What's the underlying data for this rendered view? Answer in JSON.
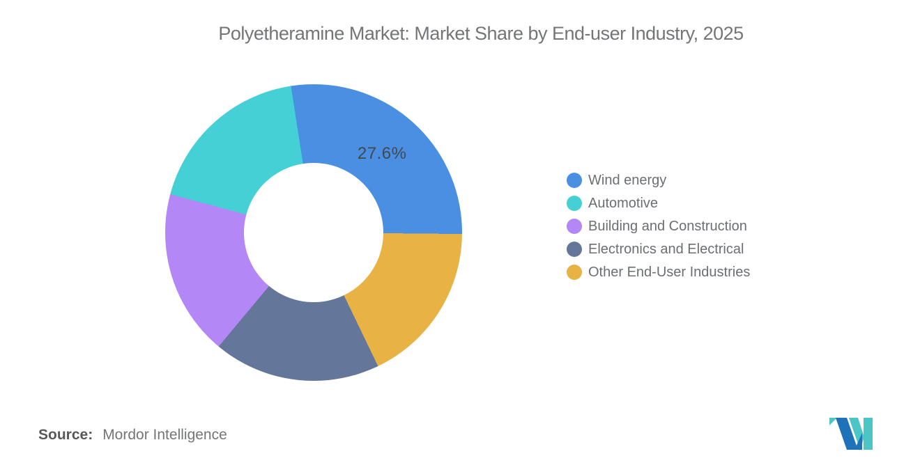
{
  "chart_data": {
    "type": "pie",
    "subtype": "donut",
    "title": "Polyetheramine Market: Market Share by End-user Industry, 2025",
    "direction": "clockwise",
    "start_angle_deg": -8.8,
    "inner_radius_ratio": 0.47,
    "slices": [
      {
        "label": "Wind energy",
        "value": 27.6,
        "color": "#4A8FE2",
        "data_label": "27.6%"
      },
      {
        "label": "Other End-User Industries",
        "value": 17.7,
        "color": "#E9B245",
        "data_label": ""
      },
      {
        "label": "Electronics and Electrical",
        "value": 18.2,
        "color": "#64779B",
        "data_label": ""
      },
      {
        "label": "Building and Construction",
        "value": 18.1,
        "color": "#B487F6",
        "data_label": ""
      },
      {
        "label": "Automotive",
        "value": 18.4,
        "color": "#44D0D4",
        "data_label": ""
      }
    ],
    "legend": {
      "position": "right",
      "items": [
        {
          "label": "Wind energy",
          "color": "#4A8FE2"
        },
        {
          "label": "Automotive",
          "color": "#44D0D4"
        },
        {
          "label": "Building and Construction",
          "color": "#B487F6"
        },
        {
          "label": "Electronics and Electrical",
          "color": "#64779B"
        },
        {
          "label": "Other End-User Industries",
          "color": "#E9B245"
        }
      ]
    }
  },
  "source": {
    "label": "Source:",
    "value": "Mordor Intelligence"
  },
  "branding": {
    "logo_name": "mordor-intelligence-logo",
    "teal": "#4CC5C5",
    "blue": "#1E72B8"
  }
}
